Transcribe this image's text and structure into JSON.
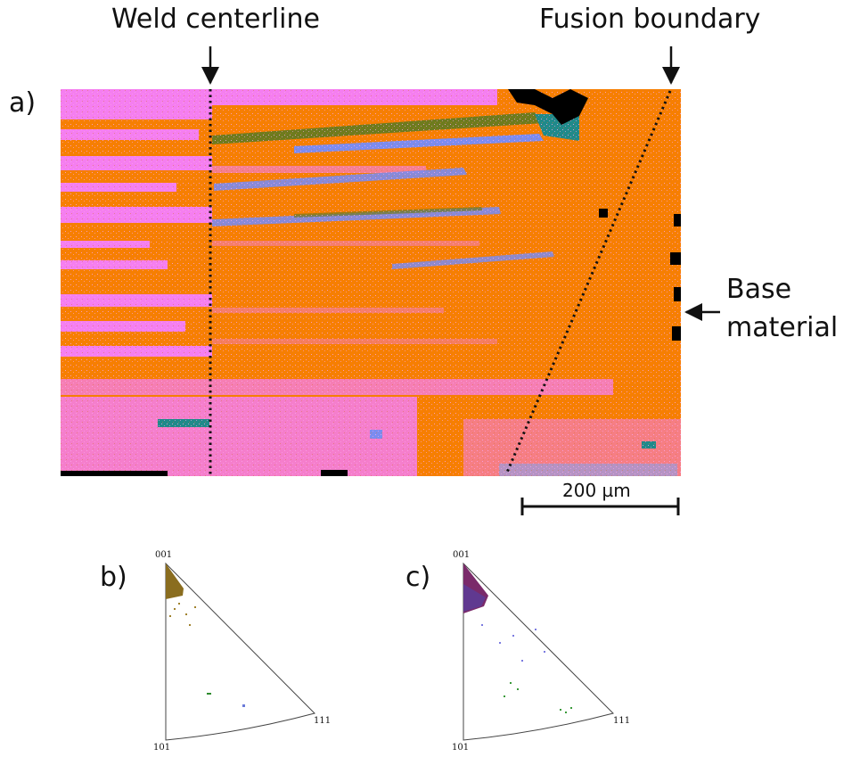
{
  "figure": {
    "panel_a": {
      "letter": "a)",
      "annotations": {
        "weld_centerline": "Weld centerline",
        "fusion_boundary": "Fusion boundary",
        "base_material_line1": "Base",
        "base_material_line2": "material"
      },
      "scale_bar": {
        "label": "200 µm"
      },
      "colors": {
        "orange": "#f77f00",
        "pink": "#f57ef0",
        "olive": "#6e7b1e",
        "blue": "#7b8cf0",
        "teal": "#1f8a8a",
        "black": "#000000"
      }
    },
    "panel_b": {
      "letter": "b)",
      "corners": {
        "top": "001",
        "bottom": "101",
        "right": "111"
      },
      "point_color": "#8a6d1f"
    },
    "panel_c": {
      "letter": "c)",
      "corners": {
        "top": "001",
        "bottom": "101",
        "right": "111"
      },
      "point_color": "#7a2a6a"
    }
  }
}
